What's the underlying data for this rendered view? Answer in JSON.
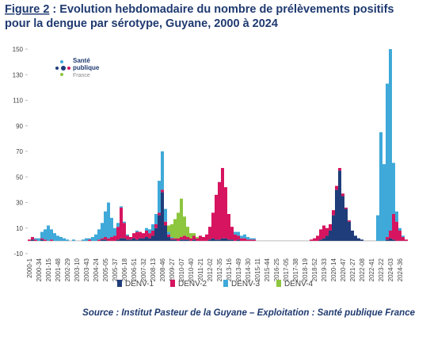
{
  "chart_data": {
    "type": "stacked_bar",
    "title_label": "Figure 2",
    "title": " : Evolution hebdomadaire du nombre de prélèvements positifs",
    "title_line2": "pour la dengue par sérotype, Guyane, 2000 à 2024",
    "logo": [
      "Santé",
      "publique",
      "France"
    ],
    "source": "Source : Institut Pasteur de la Guyane – Exploitation : Santé publique France",
    "categories": [
      "2000-1",
      null,
      null,
      "2000-34",
      null,
      null,
      "2001-15",
      null,
      null,
      "2001-48",
      null,
      null,
      "2002-29",
      null,
      null,
      "2003-10",
      null,
      null,
      "2003-43",
      null,
      null,
      "2004-24",
      null,
      null,
      "2005-05",
      null,
      null,
      "2005-37",
      null,
      null,
      "2006-18",
      null,
      null,
      "2006-51",
      null,
      null,
      "2007-32",
      null,
      null,
      "2008-13",
      null,
      null,
      "2008-46",
      null,
      null,
      "2009-27",
      null,
      null,
      "2010-07",
      null,
      null,
      "2010-40",
      null,
      null,
      "2011-21",
      null,
      null,
      "2012-02",
      null,
      null,
      "2012-35",
      null,
      null,
      "2013-16",
      null,
      null,
      "2013-49",
      null,
      null,
      "2014-30",
      null,
      null,
      "2015-11",
      null,
      null,
      "2015-44",
      null,
      null,
      "2016-25",
      null,
      null,
      "2017-05",
      null,
      null,
      "2017-38",
      null,
      null,
      "2018-19",
      null,
      null,
      "2018-52",
      null,
      null,
      "2019-33",
      null,
      null,
      "2020-14",
      null,
      null,
      "2020-47",
      null,
      null,
      "2021-27",
      null,
      null,
      "2022-08",
      null,
      null,
      "2022-41",
      null,
      null,
      "2023-22",
      null,
      null,
      "2024-03",
      null,
      null,
      "2024-36",
      null,
      null
    ],
    "series": [
      {
        "name": "DENV-1",
        "color": "#1f3d7a",
        "values": [
          0,
          1,
          0,
          0,
          1,
          0,
          0,
          0,
          0,
          0,
          0,
          0,
          0,
          0,
          0,
          0,
          0,
          0,
          0,
          0,
          0,
          0,
          0,
          1,
          1,
          0,
          0,
          0,
          1,
          2,
          2,
          1,
          1,
          2,
          1,
          2,
          2,
          3,
          2,
          4,
          10,
          20,
          38,
          12,
          3,
          1,
          1,
          0,
          1,
          1,
          1,
          0,
          1,
          0,
          0,
          0,
          0,
          1,
          2,
          1,
          1,
          2,
          2,
          1,
          1,
          0,
          1,
          0,
          0,
          0,
          0,
          0,
          0,
          0,
          0,
          0,
          0,
          0,
          0,
          0,
          0,
          0,
          0,
          0,
          0,
          0,
          0,
          0,
          0,
          0,
          0,
          0,
          1,
          2,
          4,
          8,
          20,
          40,
          55,
          35,
          25,
          15,
          8,
          4,
          2,
          1,
          0,
          0,
          0,
          0,
          0,
          0,
          0,
          1,
          2,
          1,
          0,
          0,
          0,
          0
        ]
      },
      {
        "name": "DENV-2",
        "color": "#d6145f",
        "values": [
          1,
          2,
          1,
          0,
          1,
          1,
          0,
          1,
          0,
          0,
          0,
          0,
          0,
          0,
          0,
          0,
          0,
          0,
          0,
          1,
          0,
          0,
          1,
          1,
          2,
          2,
          3,
          4,
          10,
          24,
          12,
          3,
          2,
          4,
          6,
          5,
          4,
          5,
          4,
          4,
          3,
          2,
          2,
          3,
          2,
          1,
          1,
          2,
          2,
          3,
          2,
          2,
          3,
          2,
          4,
          3,
          5,
          10,
          20,
          35,
          45,
          55,
          40,
          20,
          10,
          5,
          3,
          2,
          2,
          1,
          1,
          1,
          0,
          0,
          0,
          0,
          0,
          0,
          0,
          0,
          0,
          0,
          0,
          0,
          0,
          0,
          0,
          0,
          0,
          1,
          2,
          4,
          8,
          10,
          6,
          5,
          4,
          3,
          2,
          2,
          1,
          1,
          0,
          0,
          0,
          0,
          0,
          0,
          0,
          0,
          0,
          0,
          0,
          2,
          6,
          20,
          15,
          8,
          3,
          1
        ]
      },
      {
        "name": "DENV-3",
        "color": "#3fa9d9",
        "values": [
          0,
          0,
          1,
          2,
          5,
          8,
          12,
          8,
          6,
          4,
          3,
          2,
          1,
          0,
          1,
          0,
          0,
          1,
          2,
          1,
          3,
          5,
          8,
          12,
          20,
          28,
          15,
          6,
          3,
          1,
          1,
          1,
          0,
          0,
          1,
          0,
          0,
          2,
          3,
          5,
          8,
          25,
          30,
          10,
          2,
          1,
          0,
          0,
          0,
          0,
          0,
          0,
          0,
          0,
          0,
          0,
          0,
          0,
          0,
          0,
          0,
          0,
          0,
          0,
          0,
          2,
          3,
          2,
          3,
          2,
          1,
          1,
          0,
          0,
          0,
          0,
          0,
          0,
          0,
          0,
          0,
          0,
          0,
          0,
          0,
          0,
          0,
          0,
          0,
          0,
          0,
          0,
          0,
          0,
          0,
          0,
          0,
          0,
          0,
          0,
          0,
          0,
          0,
          0,
          0,
          0,
          0,
          0,
          0,
          0,
          20,
          85,
          60,
          120,
          142,
          40,
          8,
          2,
          1,
          0
        ]
      },
      {
        "name": "DENV-4",
        "color": "#8dc63f",
        "values": [
          0,
          0,
          0,
          0,
          0,
          0,
          0,
          0,
          0,
          0,
          0,
          0,
          0,
          0,
          0,
          0,
          0,
          0,
          0,
          0,
          0,
          0,
          0,
          0,
          0,
          0,
          0,
          0,
          0,
          0,
          0,
          0,
          0,
          0,
          0,
          0,
          0,
          0,
          0,
          0,
          0,
          0,
          0,
          0,
          5,
          10,
          15,
          20,
          30,
          15,
          8,
          4,
          2,
          1,
          0,
          0,
          0,
          0,
          0,
          0,
          0,
          0,
          0,
          0,
          0,
          0,
          0,
          0,
          0,
          0,
          0,
          0,
          0,
          0,
          0,
          0,
          0,
          0,
          0,
          0,
          0,
          0,
          0,
          0,
          0,
          0,
          0,
          0,
          0,
          0,
          0,
          0,
          0,
          0,
          0,
          0,
          0,
          0,
          0,
          0,
          0,
          0,
          0,
          0,
          0,
          0,
          0,
          0,
          0,
          0,
          0,
          0,
          0,
          0,
          0,
          0,
          0,
          0,
          0,
          0
        ]
      }
    ],
    "ylim": [
      -10,
      150
    ],
    "yticks": [
      150,
      130,
      110,
      90,
      70,
      50,
      30,
      10,
      -10
    ],
    "grid": false
  }
}
